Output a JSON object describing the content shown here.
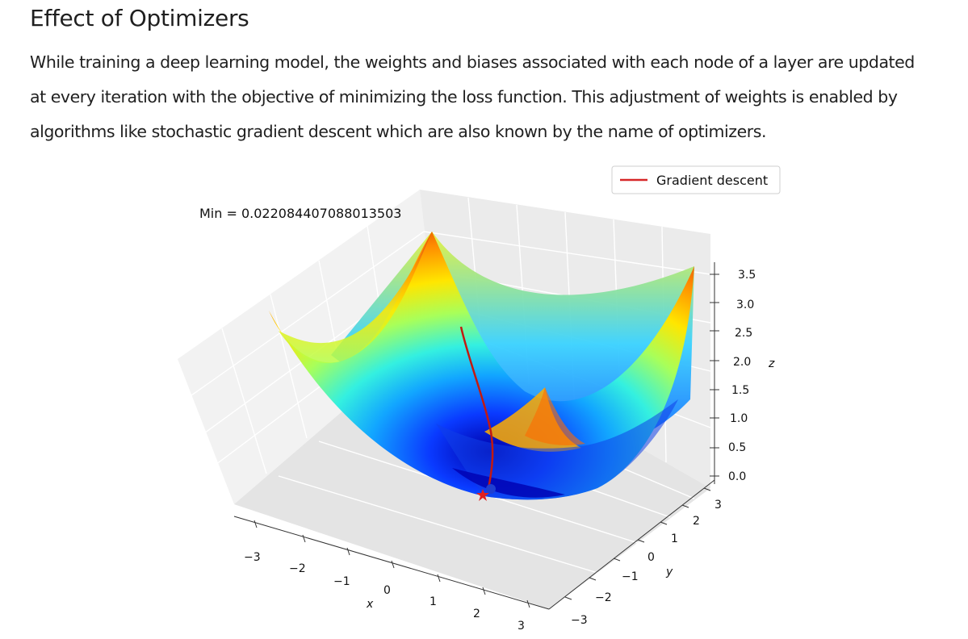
{
  "article": {
    "heading": "Effect of Optimizers",
    "paragraph_lines": [
      "While training a deep learning model, the weights and biases associated with each node of a layer are updated",
      "at every iteration with the objective of minimizing the loss function. This adjustment of weights is enabled by",
      "algorithms like stochastic gradient descent which are also known by the name of optimizers."
    ]
  },
  "chart_data": {
    "type": "surface",
    "annotation": "Min = 0.022084407088013503",
    "legend": {
      "entries": [
        "Gradient descent"
      ],
      "placement": "top-right"
    },
    "xlabel": "x",
    "ylabel": "y",
    "zlabel": "z",
    "x_ticks": [
      "−3",
      "−2",
      "−1",
      "0",
      "1",
      "2",
      "3"
    ],
    "y_ticks": [
      "−3",
      "−2",
      "−1",
      "0",
      "1",
      "2",
      "3"
    ],
    "z_ticks": [
      "0.0",
      "0.5",
      "1.0",
      "1.5",
      "2.0",
      "2.5",
      "3.0",
      "3.5"
    ],
    "xlim": [
      -3,
      3
    ],
    "ylim": [
      -3,
      3
    ],
    "zlim": [
      0,
      3.5
    ],
    "colormap": "jet",
    "series_color": "#d62728",
    "markers": {
      "start": "blue-dot",
      "minimum": "red-star"
    }
  }
}
